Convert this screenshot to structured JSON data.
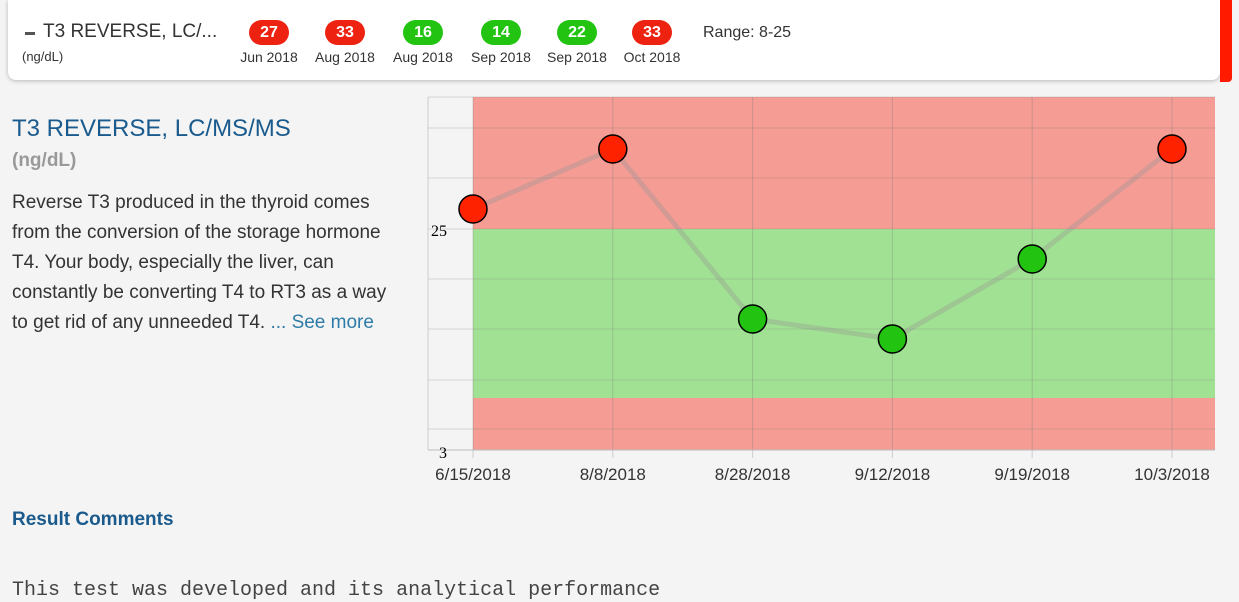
{
  "header": {
    "title": "T3 REVERSE, LC/...",
    "unit": "(ng/dL)",
    "range": "Range: 8-25",
    "history": [
      {
        "value": "27",
        "date": "Jun 2018",
        "color": "#ee2211"
      },
      {
        "value": "33",
        "date": "Aug 2018",
        "color": "#ee2211"
      },
      {
        "value": "16",
        "date": "Aug 2018",
        "color": "#22c411"
      },
      {
        "value": "14",
        "date": "Sep 2018",
        "color": "#22c411"
      },
      {
        "value": "22",
        "date": "Sep 2018",
        "color": "#22c411"
      },
      {
        "value": "33",
        "date": "Oct 2018",
        "color": "#ee2211"
      }
    ]
  },
  "detail": {
    "title": "T3 REVERSE, LC/MS/MS",
    "unit": "(ng/dL)",
    "description": "Reverse T3 produced in the thyroid comes from the conversion of the storage hormone T4. Your body, especially the liver, can constantly be converting T4 to RT3 as a way to get rid of any unneeded T4.",
    "see_more": "... See more"
  },
  "comments": {
    "heading": "Result Comments",
    "text": "This test was developed and its analytical performance"
  },
  "colors": {
    "high_band": "#f59c94",
    "normal_band": "#a1e193",
    "point_high": "#ff2200",
    "point_normal": "#22c411",
    "line": "rgba(150,150,150,0.35)"
  },
  "chart_data": {
    "type": "line",
    "x": [
      "6/15/2018",
      "8/8/2018",
      "8/28/2018",
      "9/12/2018",
      "9/19/2018",
      "10/3/2018"
    ],
    "values": [
      27,
      33,
      16,
      14,
      22,
      33
    ],
    "ytick_labels": [
      "25",
      "3"
    ],
    "normal_range": [
      8,
      25
    ],
    "grid": true
  }
}
